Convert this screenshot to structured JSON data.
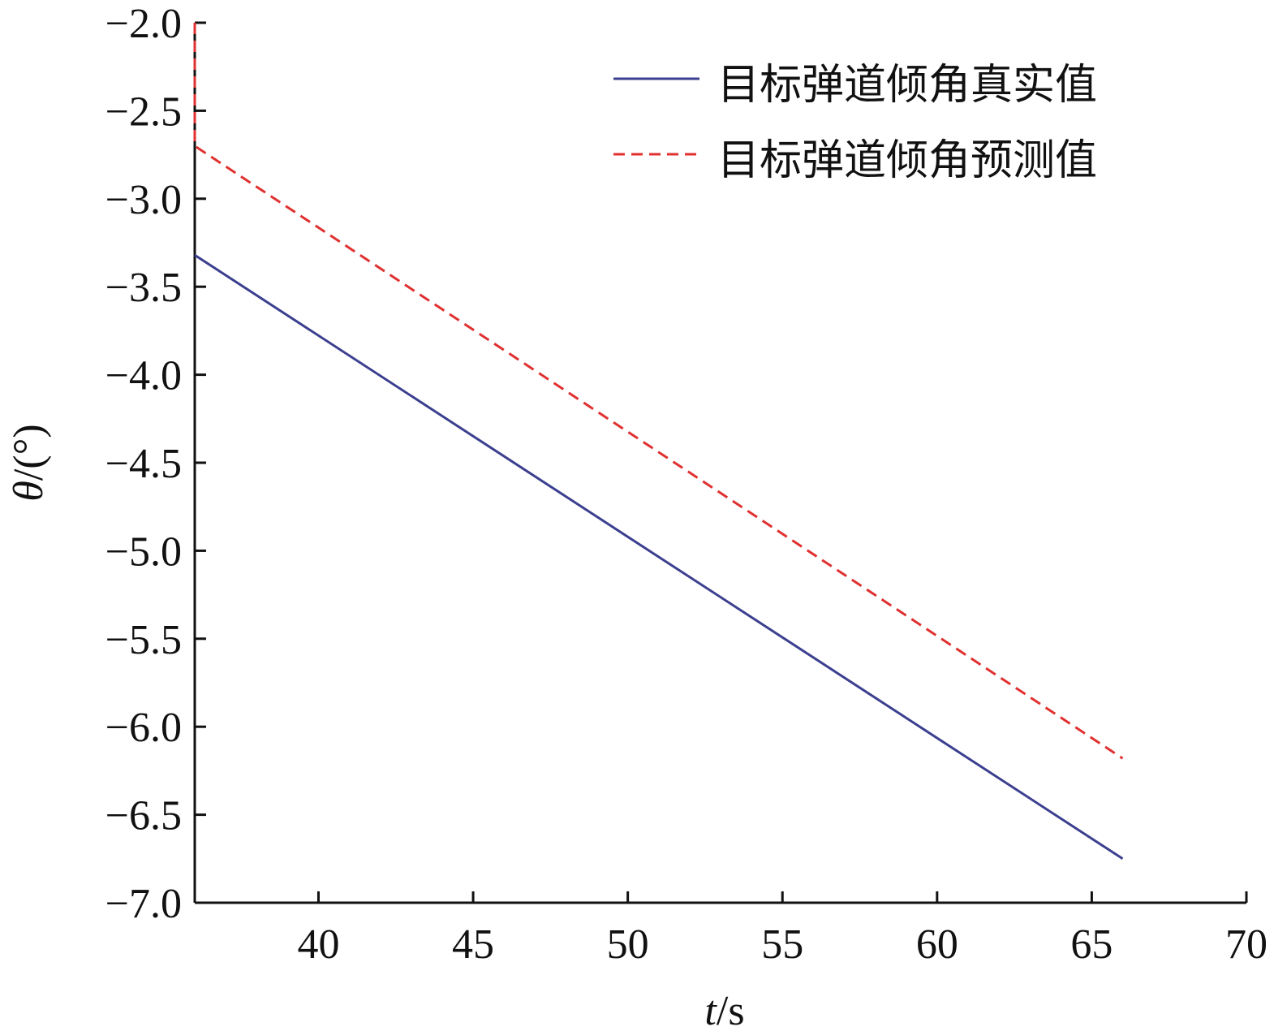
{
  "chart_data": {
    "type": "line",
    "title": "",
    "xlabel_italic": "t",
    "xlabel_unit": "/s",
    "ylabel_italic": "θ",
    "ylabel_unit": "/(°)",
    "xlim": [
      36,
      70
    ],
    "ylim": [
      -7.0,
      -2.0
    ],
    "xticks": [
      40,
      45,
      50,
      55,
      60,
      65,
      70
    ],
    "yticks": [
      -2.0,
      -2.5,
      -3.0,
      -3.5,
      -4.0,
      -4.5,
      -5.0,
      -5.5,
      -6.0,
      -6.5,
      -7.0
    ],
    "ytick_labels": [
      "−2.0",
      "−2.5",
      "−3.0",
      "−3.5",
      "−4.0",
      "−4.5",
      "−5.0",
      "−5.5",
      "−6.0",
      "−6.5",
      "−7.0"
    ],
    "legend_position": "top-right",
    "grid": false,
    "series": [
      {
        "name": "目标弹道倾角真实值",
        "color": "#3b3f8f",
        "style": "solid",
        "x": [
          36,
          66
        ],
        "y": [
          -3.32,
          -6.75
        ]
      },
      {
        "name": "目标弹道倾角预测值",
        "color": "#e03030",
        "style": "dashed",
        "x": [
          36,
          36,
          66
        ],
        "y": [
          -2.0,
          -2.7,
          -6.18
        ]
      }
    ]
  }
}
